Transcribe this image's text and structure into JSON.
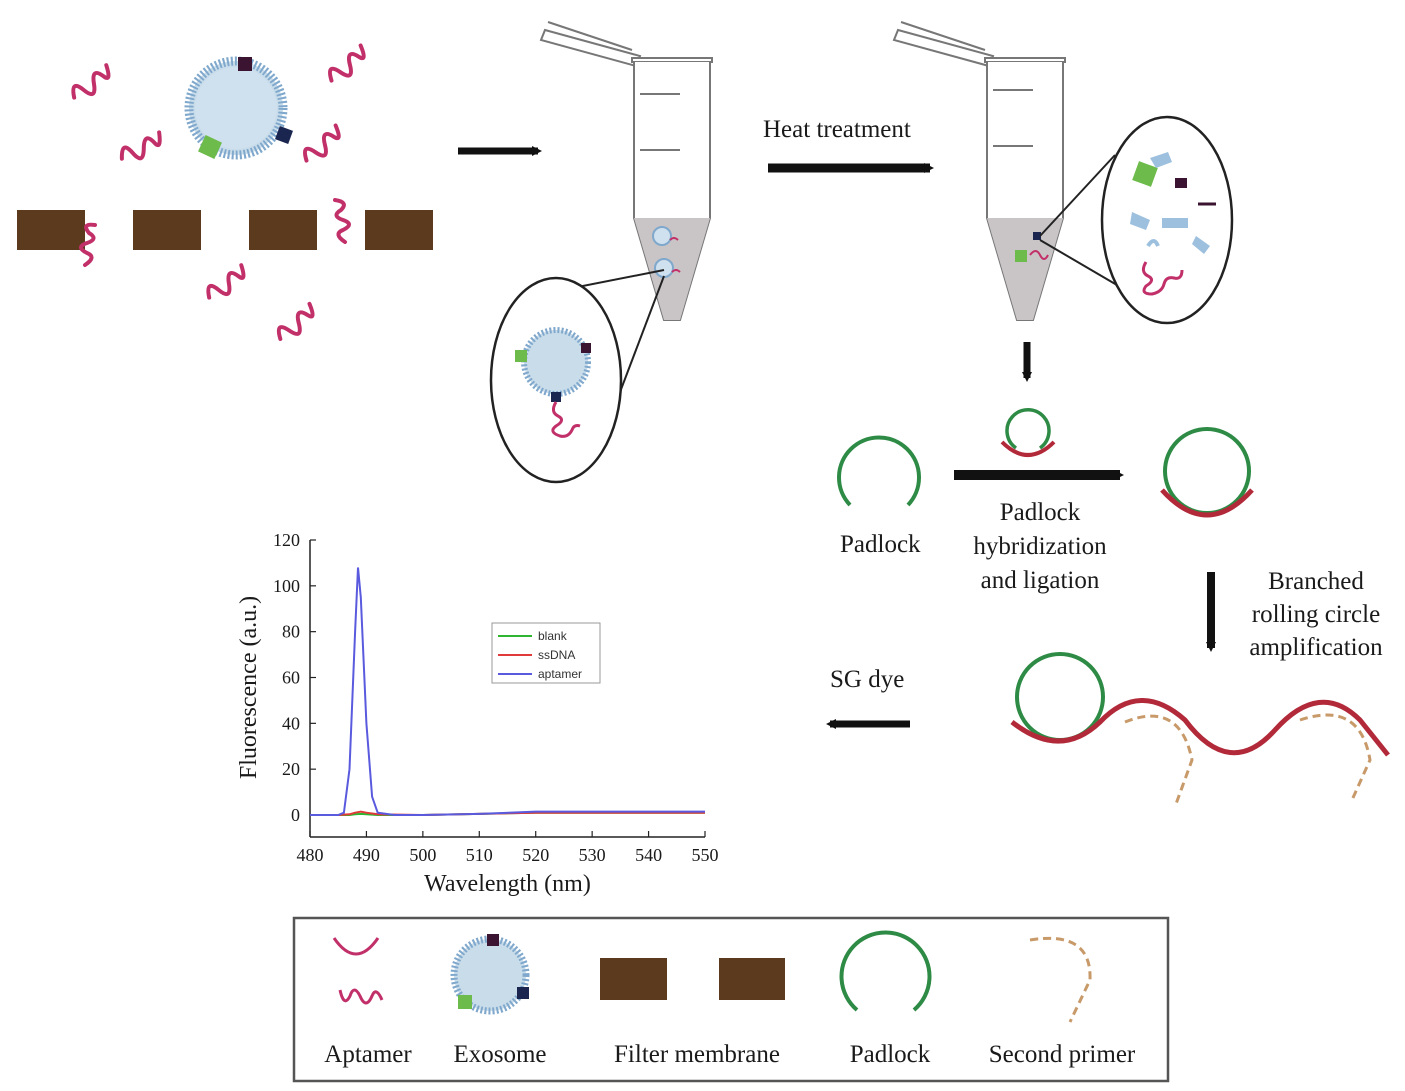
{
  "labels": {
    "heat_treatment": "Heat treatment",
    "padlock": "Padlock",
    "padlock_step": [
      "Padlock",
      "hybridization",
      "and ligation"
    ],
    "amplification_step": [
      "Branched",
      "rolling circle",
      "amplification"
    ],
    "sg_dye": "SG dye"
  },
  "legend_box": {
    "items": [
      {
        "label": "Aptamer",
        "icon": "aptamer-icon"
      },
      {
        "label": "Exosome",
        "icon": "exosome-icon"
      },
      {
        "label": "Filter membrane",
        "icon": "filter-membrane-icon"
      },
      {
        "label": "Padlock",
        "icon": "padlock-icon"
      },
      {
        "label": "Second primer",
        "icon": "second-primer-icon"
      }
    ]
  },
  "colors": {
    "aptamer": "#c2306a",
    "padlock": "#2e8b45",
    "membrane": "#5b3a1e",
    "exosome_fill": "#c9dcea",
    "exosome_rim": "#7fa8cc",
    "product": "#b22a3a",
    "primer": "#c89a6a",
    "tube_liquid": "#c9c5c6"
  },
  "chart_data": {
    "type": "line",
    "xlabel": "Wavelength (nm)",
    "ylabel": "Fluorescence (a.u.)",
    "xlim": [
      480,
      550
    ],
    "ylim": [
      0,
      120
    ],
    "xticks": [
      480,
      490,
      500,
      510,
      520,
      530,
      540,
      550
    ],
    "yticks": [
      0,
      20,
      40,
      60,
      80,
      100,
      120
    ],
    "legend_position": "upper-middle",
    "series": [
      {
        "name": "blank",
        "color": "#2fb52f",
        "x": [
          480,
          485,
          487,
          488,
          489,
          490,
          492,
          500,
          510,
          520,
          530,
          540,
          550
        ],
        "y": [
          0,
          0,
          0,
          0.3,
          0.5,
          0.3,
          0,
          0,
          0.5,
          1.0,
          1.0,
          1.0,
          1.0
        ]
      },
      {
        "name": "ssDNA",
        "color": "#e03a3a",
        "x": [
          480,
          485,
          487,
          488,
          489,
          490,
          492,
          500,
          510,
          520,
          530,
          540,
          550
        ],
        "y": [
          0,
          0,
          0.3,
          1,
          1.5,
          1,
          0.3,
          0,
          0.5,
          1.0,
          1.0,
          1.0,
          1.0
        ]
      },
      {
        "name": "aptamer",
        "color": "#5a5adf",
        "x": [
          480,
          485,
          486,
          487,
          488,
          488.5,
          489,
          490,
          491,
          492,
          495,
          500,
          510,
          520,
          530,
          540,
          550
        ],
        "y": [
          0,
          0,
          1,
          20,
          80,
          108,
          95,
          40,
          8,
          1,
          0,
          0,
          0.5,
          1.5,
          1.5,
          1.5,
          1.5
        ]
      }
    ]
  }
}
